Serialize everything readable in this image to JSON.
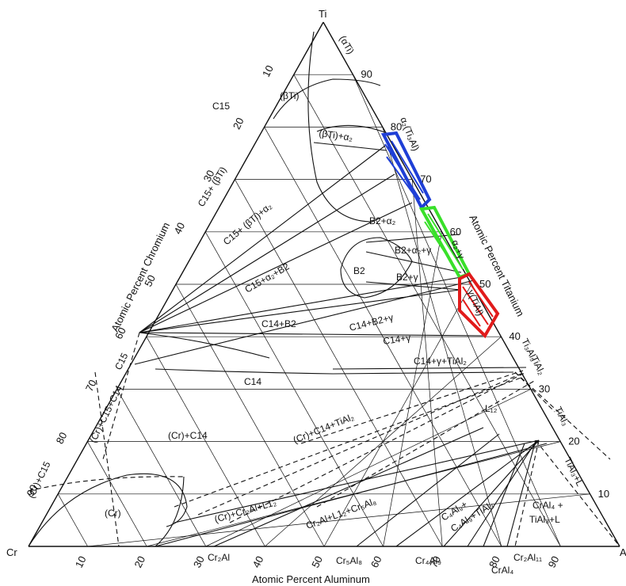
{
  "corners": {
    "top": "Ti",
    "left": "Cr",
    "right": "Al"
  },
  "axis_titles": {
    "left": "Atomic Percent Chromium",
    "right": "Atomic Percent Titanium",
    "bottom": "Atomic Percent Aluminum"
  },
  "left_ticks": [
    "10",
    "20",
    "30",
    "40",
    "50",
    "60",
    "70",
    "80",
    "90"
  ],
  "right_ticks": [
    "90",
    "80",
    "70",
    "60",
    "50",
    "40",
    "30",
    "20",
    "10"
  ],
  "bottom_ticks": [
    "10",
    "20",
    "30",
    "40",
    "50",
    "60",
    "70",
    "80",
    "90"
  ],
  "phase_labels": {
    "ati": "(αTi)",
    "bti": "(βTi)",
    "c15": "C15",
    "bti_a2": "(βTi)+α₂",
    "a2_ti3al": "α₂(Ti₃Al)",
    "c15_bti": "C15+ (βTi)",
    "c15_bti_a2": "C15+ (βTi)+α₂",
    "b2_a2": "B2+α₂",
    "a2_g": "α₂+γ",
    "b2_a2_g": "B2+α₂+γ",
    "c15_a2_b2": "C15+α₂+B2",
    "b2": "B2",
    "b2_g": "B2+γ",
    "g_tial": "γ(TiAl)",
    "c14_b2": "C14+B2",
    "c14_b2_g": "C14+B2+γ",
    "c14_g": "C14+γ",
    "c15_side": "C15",
    "c14_g_tial2": "C14+γ+TiAl₂",
    "ti3al5": "Ti₃Al₅",
    "tial2": "TiAl₂",
    "c14": "C14",
    "c15_c14": "(Cr)+C15+C14",
    "l1": "L₁₂",
    "tial3": "TiAl₃",
    "cr_c14": "(Cr)+C14",
    "cr_c14_tial2": "(Cr)+C14+TiAl₂",
    "cr_c15": "(Cr)+C15",
    "tial3_l": "TiAl₃+L",
    "cr": "(Cr)",
    "cr_cr2al_l12": "(Cr)+Cr₂Al+L1₂",
    "cr2al_l12_cr5al8": "Cr₂Al+L1₂+Cr₅Al₈",
    "c4al9_l12": "C₄Al₉+",
    "c4al9_tial3": "C₄Al₉+TiAl₃",
    "cral4_tial3_l": "CrAl₄ +",
    "cral4_tial3_l2": "TiAl₃+L",
    "cr2al": "Cr₂Al",
    "cr5al8": "Cr₅Al₈",
    "cr4al9": "Cr₄Al₉",
    "cr2al11": "Cr₂Al₁₁",
    "cral4": "CrAl₄"
  },
  "highlight_colors": {
    "alpha2": "#1f3fd6",
    "alpha2_gamma": "#39e02a",
    "gamma": "#e11b1b"
  }
}
